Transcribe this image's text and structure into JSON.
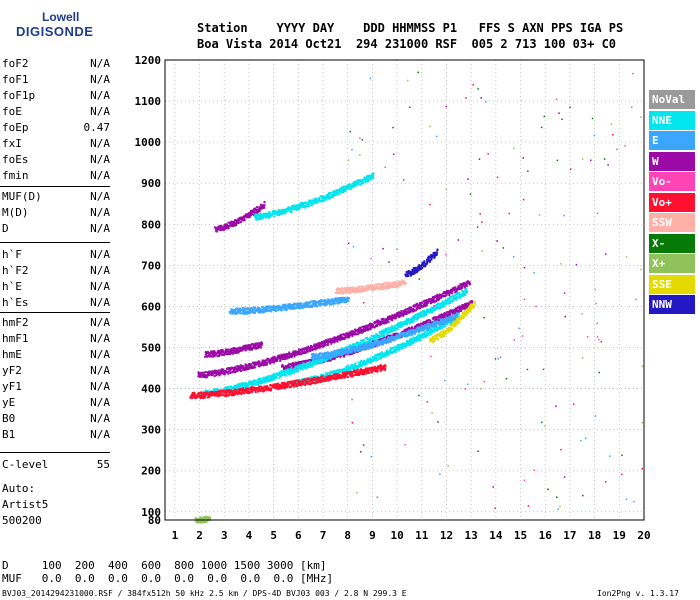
{
  "logo": {
    "line1": "Lowell",
    "line2": "DIGISONDE"
  },
  "header": {
    "line1": "Station    YYYY DAY    DDD HHMMSS P1   FFS S AXN PPS IGA PS",
    "line2": "Boa Vista 2014 Oct21  294 231000 RSF  005 2 713 100 03+ C0"
  },
  "params": [
    {
      "name": "foF2",
      "value": "N/A"
    },
    {
      "name": "foF1",
      "value": "N/A"
    },
    {
      "name": "foF1p",
      "value": "N/A"
    },
    {
      "name": "foE",
      "value": "N/A"
    },
    {
      "name": "foEp",
      "value": "0.47"
    },
    {
      "name": "fxI",
      "value": "N/A"
    },
    {
      "name": "foEs",
      "value": "N/A"
    },
    {
      "name": "fmin",
      "value": "N/A"
    },
    {
      "name": "MUF(D)",
      "value": "N/A"
    },
    {
      "name": "M(D)",
      "value": "N/A"
    },
    {
      "name": "D",
      "value": "N/A"
    },
    {
      "name": "h`F",
      "value": "N/A"
    },
    {
      "name": "h`F2",
      "value": "N/A"
    },
    {
      "name": "h`E",
      "value": "N/A"
    },
    {
      "name": "h`Es",
      "value": "N/A"
    },
    {
      "name": "hmF2",
      "value": "N/A"
    },
    {
      "name": "hmF1",
      "value": "N/A"
    },
    {
      "name": "hmE",
      "value": "N/A"
    },
    {
      "name": "yF2",
      "value": "N/A"
    },
    {
      "name": "yF1",
      "value": "N/A"
    },
    {
      "name": "yE",
      "value": "N/A"
    },
    {
      "name": "B0",
      "value": "N/A"
    },
    {
      "name": "B1",
      "value": "N/A"
    },
    {
      "name": "C-level",
      "value": "55"
    }
  ],
  "auto": {
    "line1": "Auto:",
    "line2": "Artist5",
    "line3": "500200"
  },
  "bottom_table": {
    "d_row": "D     100  200  400  600  800 1000 1500 3000 [km]",
    "muf_row": "MUF   0.0  0.0  0.0  0.0  0.0  0.0  0.0  0.0 [MHz]"
  },
  "footer": {
    "left": "BVJ03_2014294231000.RSF / 384fx512h 50 kHz 2.5 km / DPS-4D BVJ03 003 / 2.8 N 299.3 E",
    "right": "Ion2Png v. 1.3.17"
  },
  "legend": [
    {
      "label": "NoVal",
      "color": "#9a9a9a"
    },
    {
      "label": "NNE",
      "color": "#00e5ee"
    },
    {
      "label": "E",
      "color": "#3aa6ff"
    },
    {
      "label": "W",
      "color": "#9b0aa6"
    },
    {
      "label": "Vo-",
      "color": "#ff45b5"
    },
    {
      "label": "Vo+",
      "color": "#ff1030"
    },
    {
      "label": "SSW",
      "color": "#ffb0a6"
    },
    {
      "label": "X-",
      "color": "#067a06"
    },
    {
      "label": "X+",
      "color": "#8fc25a"
    },
    {
      "label": "SSE",
      "color": "#e4d900"
    },
    {
      "label": "NNW",
      "color": "#2418c4"
    }
  ],
  "chart_data": {
    "type": "scatter",
    "xlabel": "",
    "ylabel": "",
    "xlim": [
      0.6,
      20.0
    ],
    "ylim": [
      80,
      1200
    ],
    "xticks": [
      1,
      2,
      3,
      4,
      5,
      6,
      7,
      8,
      9,
      10,
      11,
      12,
      13,
      14,
      15,
      16,
      17,
      18,
      19,
      20
    ],
    "yticks": [
      80,
      100,
      200,
      300,
      400,
      500,
      600,
      700,
      800,
      900,
      1000,
      1100,
      1200
    ],
    "grid": "dotted",
    "legend_position": "right",
    "series": [
      {
        "name": "W",
        "traces": [
          {
            "x0": 1.9,
            "x1": 12.9,
            "h0": 435,
            "h1": 660
          },
          {
            "x0": 5.3,
            "x1": 13.0,
            "h0": 455,
            "h1": 610
          },
          {
            "x0": 2.2,
            "x1": 4.5,
            "h0": 485,
            "h1": 510
          },
          {
            "x0": 2.6,
            "x1": 4.6,
            "h0": 790,
            "h1": 850
          }
        ]
      },
      {
        "name": "NNE",
        "traces": [
          {
            "x0": 2.0,
            "x1": 12.8,
            "h0": 390,
            "h1": 640
          },
          {
            "x0": 5.7,
            "x1": 12.5,
            "h0": 415,
            "h1": 580
          },
          {
            "x0": 4.2,
            "x1": 9.0,
            "h0": 820,
            "h1": 920
          }
        ]
      },
      {
        "name": "E",
        "traces": [
          {
            "x0": 3.2,
            "x1": 8.0,
            "h0": 590,
            "h1": 620
          },
          {
            "x0": 6.5,
            "x1": 12.4,
            "h0": 480,
            "h1": 580
          }
        ]
      },
      {
        "name": "Vo+",
        "traces": [
          {
            "x0": 1.6,
            "x1": 9.5,
            "h0": 385,
            "h1": 455
          }
        ]
      },
      {
        "name": "SSW",
        "traces": [
          {
            "x0": 7.5,
            "x1": 10.3,
            "h0": 640,
            "h1": 660
          }
        ]
      },
      {
        "name": "NNW",
        "traces": [
          {
            "x0": 10.3,
            "x1": 11.6,
            "h0": 680,
            "h1": 735
          }
        ]
      },
      {
        "name": "SSE",
        "traces": [
          {
            "x0": 11.3,
            "x1": 13.1,
            "h0": 520,
            "h1": 610
          }
        ]
      },
      {
        "name": "X+",
        "traces": [
          {
            "x0": 1.8,
            "x1": 2.4,
            "h0": 82,
            "h1": 86
          }
        ]
      }
    ]
  }
}
